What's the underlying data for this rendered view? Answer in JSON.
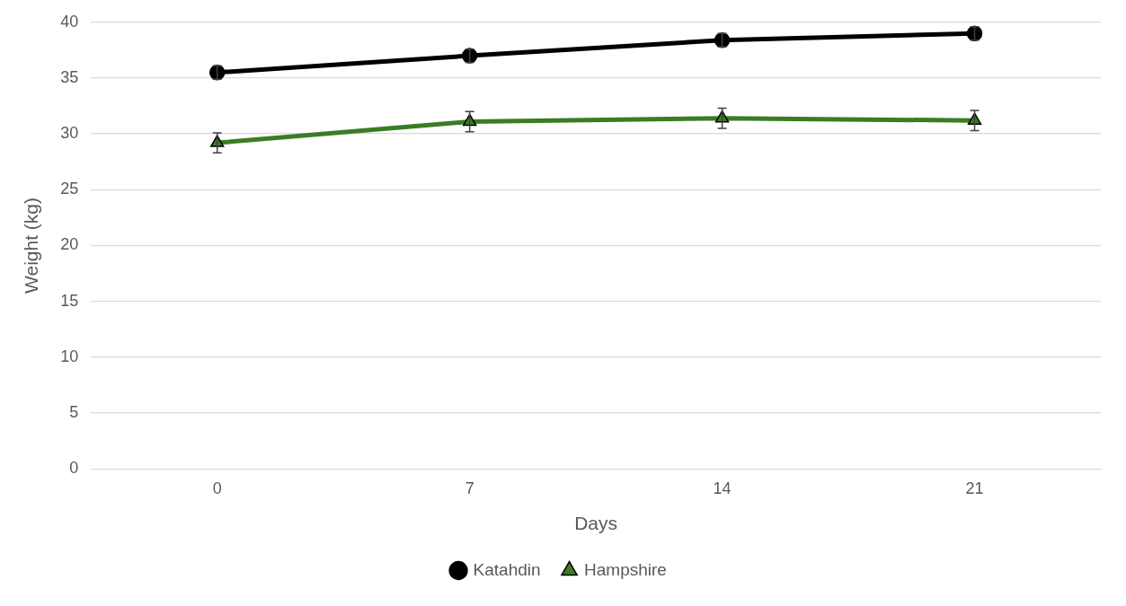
{
  "chart_data": {
    "type": "line",
    "xlabel": "Days",
    "ylabel": "Weight (kg)",
    "categories": [
      "0",
      "7",
      "14",
      "21"
    ],
    "series": [
      {
        "name": "Katahdin",
        "color": "#000000",
        "marker": "circle",
        "values": [
          35.5,
          37.0,
          38.4,
          39.0
        ],
        "errors": [
          0.6,
          0.6,
          0.6,
          0.6
        ]
      },
      {
        "name": "Hampshire",
        "color": "#3a7d22",
        "marker": "triangle",
        "values": [
          29.2,
          31.1,
          31.4,
          31.2
        ],
        "errors": [
          0.9,
          0.9,
          0.9,
          0.9
        ]
      }
    ],
    "ylim": [
      0,
      40
    ],
    "yticks": [
      0,
      5,
      10,
      15,
      20,
      25,
      30,
      35,
      40
    ],
    "grid": "y",
    "legend": "bottom",
    "line_style": "solid"
  }
}
